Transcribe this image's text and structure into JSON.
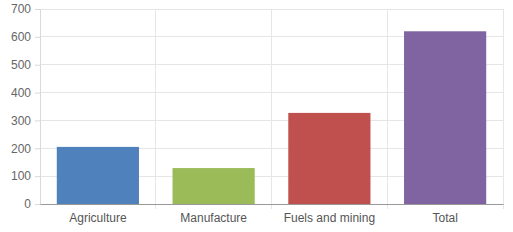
{
  "chart_data": {
    "type": "bar",
    "categories": [
      "Agriculture",
      "Manufacture",
      "Fuels and mining",
      "Total"
    ],
    "values": [
      205,
      129,
      327,
      620
    ],
    "colors": [
      "#4f81bd",
      "#9bbb59",
      "#c0504d",
      "#8064a2"
    ],
    "ylim": [
      0,
      700
    ],
    "yticks": [
      0,
      100,
      200,
      300,
      400,
      500,
      600,
      700
    ],
    "grid": true
  }
}
